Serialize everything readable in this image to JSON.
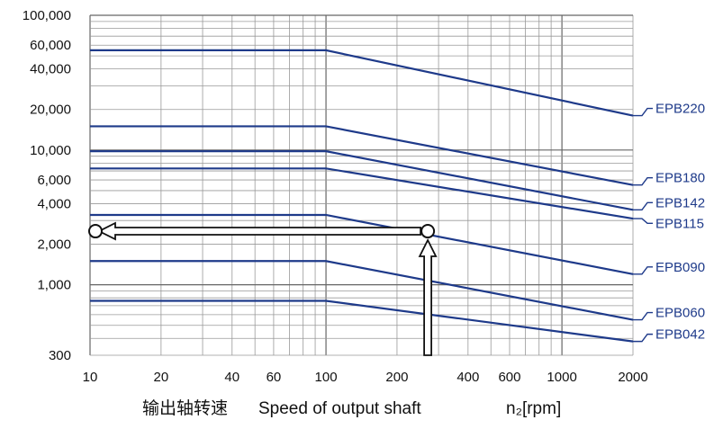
{
  "chart_data": {
    "type": "line",
    "xscale": "log",
    "yscale": "log",
    "xlim": [
      10,
      2000
    ],
    "ylim": [
      300,
      100000
    ],
    "grid": true,
    "x_ticks": [
      10,
      20,
      40,
      60,
      100,
      200,
      400,
      600,
      1000,
      2000
    ],
    "x_tick_labels": [
      "10",
      "20",
      "40",
      "60",
      "100",
      "200",
      "400",
      "600",
      "1000",
      "2000"
    ],
    "y_ticks": [
      300,
      1000,
      2000,
      4000,
      6000,
      10000,
      20000,
      40000,
      60000,
      100000
    ],
    "y_tick_labels": [
      "300",
      "1,000",
      "2,000",
      "4,000",
      "6,000",
      "10,000",
      "20,000",
      "40,000",
      "60,000",
      "100,000"
    ],
    "xlabel_cn": "输出轴转速",
    "xlabel_en": "Speed of output shaft",
    "xlabel_unit": "n₂[rpm]",
    "line_color": "#1e3a8a",
    "series": [
      {
        "name": "EPB220",
        "x": [
          10,
          100,
          2000
        ],
        "y": [
          55000,
          55000,
          18000
        ]
      },
      {
        "name": "EPB180",
        "x": [
          10,
          100,
          2000
        ],
        "y": [
          15000,
          15000,
          5500
        ]
      },
      {
        "name": "EPB142",
        "x": [
          10,
          100,
          2000
        ],
        "y": [
          9800,
          9800,
          3600
        ]
      },
      {
        "name": "EPB115",
        "x": [
          10,
          100,
          2000
        ],
        "y": [
          7300,
          7300,
          3100
        ]
      },
      {
        "name": "EPB090",
        "x": [
          10,
          100,
          2000
        ],
        "y": [
          3300,
          3300,
          1200
        ]
      },
      {
        "name": "EPB060",
        "x": [
          10,
          100,
          2000
        ],
        "y": [
          1500,
          1500,
          550
        ]
      },
      {
        "name": "EPB042",
        "x": [
          10,
          100,
          2000
        ],
        "y": [
          760,
          760,
          380
        ]
      }
    ],
    "annotation": {
      "description_marker_circle_1": "circle",
      "up_arrow_x": 270,
      "up_arrow_from_y": 300,
      "read_point": [
        270,
        2500
      ],
      "left_arrow_to_x": 10
    }
  }
}
